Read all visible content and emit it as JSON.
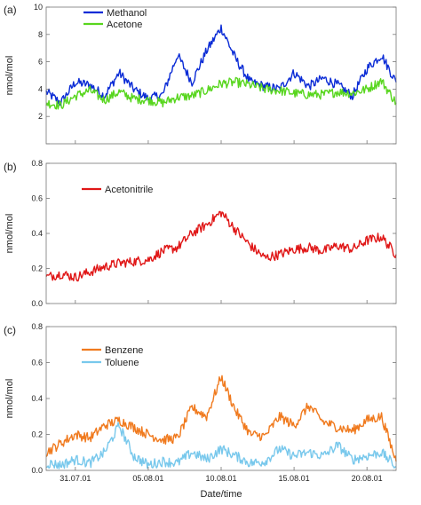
{
  "chart_data": [
    {
      "type": "line",
      "panel_label": "(a)",
      "ylabel": "nmol/mol",
      "ylim": [
        0,
        10
      ],
      "yticks": [
        0,
        2,
        4,
        6,
        8,
        10
      ],
      "ytick_labels": [
        "",
        "2",
        "4",
        "6",
        "8",
        "10"
      ],
      "x_range": [
        "2001-07-29",
        "2001-08-22"
      ],
      "legend_position": "top-left",
      "series": [
        {
          "name": "Methanol",
          "color": "#0a2bd6",
          "x": [
            "2001-07-29",
            "2001-07-30",
            "2001-07-31",
            "2001-08-01",
            "2001-08-02",
            "2001-08-03",
            "2001-08-04",
            "2001-08-05",
            "2001-08-06",
            "2001-08-07",
            "2001-08-08",
            "2001-08-09",
            "2001-08-10",
            "2001-08-11",
            "2001-08-12",
            "2001-08-13",
            "2001-08-14",
            "2001-08-15",
            "2001-08-16",
            "2001-08-17",
            "2001-08-18",
            "2001-08-19",
            "2001-08-20",
            "2001-08-21",
            "2001-08-22"
          ],
          "y": [
            3.8,
            3.0,
            4.5,
            4.3,
            3.5,
            5.2,
            4.0,
            3.3,
            3.6,
            6.5,
            4.5,
            6.8,
            8.5,
            6.2,
            4.5,
            4.2,
            4.0,
            5.2,
            4.2,
            4.8,
            4.3,
            3.5,
            5.5,
            6.5,
            4.5
          ]
        },
        {
          "name": "Acetone",
          "color": "#58d61e",
          "x": [
            "2001-07-29",
            "2001-07-30",
            "2001-07-31",
            "2001-08-01",
            "2001-08-02",
            "2001-08-03",
            "2001-08-04",
            "2001-08-05",
            "2001-08-06",
            "2001-08-07",
            "2001-08-08",
            "2001-08-09",
            "2001-08-10",
            "2001-08-11",
            "2001-08-12",
            "2001-08-13",
            "2001-08-14",
            "2001-08-15",
            "2001-08-16",
            "2001-08-17",
            "2001-08-18",
            "2001-08-19",
            "2001-08-20",
            "2001-08-21",
            "2001-08-22"
          ],
          "y": [
            3.0,
            2.8,
            3.5,
            3.9,
            3.2,
            3.8,
            3.3,
            3.2,
            3.0,
            3.4,
            3.5,
            3.9,
            4.4,
            4.5,
            4.3,
            4.0,
            3.9,
            3.7,
            3.6,
            3.6,
            3.8,
            3.7,
            4.0,
            4.6,
            3.0
          ]
        }
      ]
    },
    {
      "type": "line",
      "panel_label": "(b)",
      "ylabel": "nmol/mol",
      "ylim": [
        0,
        0.8
      ],
      "yticks": [
        0,
        0.2,
        0.4,
        0.6,
        0.8
      ],
      "ytick_labels": [
        "0.0",
        "0.2",
        "0.4",
        "0.6",
        "0.8"
      ],
      "x_range": [
        "2001-07-29",
        "2001-08-22"
      ],
      "legend_position": "top-left",
      "series": [
        {
          "name": "Acetonitrile",
          "color": "#e01616",
          "x": [
            "2001-07-29",
            "2001-07-30",
            "2001-07-31",
            "2001-08-01",
            "2001-08-02",
            "2001-08-03",
            "2001-08-04",
            "2001-08-05",
            "2001-08-06",
            "2001-08-07",
            "2001-08-08",
            "2001-08-09",
            "2001-08-10",
            "2001-08-11",
            "2001-08-12",
            "2001-08-13",
            "2001-08-14",
            "2001-08-15",
            "2001-08-16",
            "2001-08-17",
            "2001-08-18",
            "2001-08-19",
            "2001-08-20",
            "2001-08-21",
            "2001-08-22"
          ],
          "y": [
            0.15,
            0.17,
            0.15,
            0.18,
            0.21,
            0.23,
            0.24,
            0.25,
            0.3,
            0.32,
            0.4,
            0.45,
            0.52,
            0.42,
            0.33,
            0.26,
            0.28,
            0.31,
            0.32,
            0.3,
            0.33,
            0.31,
            0.36,
            0.38,
            0.28
          ]
        }
      ]
    },
    {
      "type": "line",
      "panel_label": "(c)",
      "ylabel": "nmol/mol",
      "xlabel": "Date/time",
      "ylim": [
        0,
        0.8
      ],
      "yticks": [
        0,
        0.2,
        0.4,
        0.6,
        0.8
      ],
      "ytick_labels": [
        "0.0",
        "0.2",
        "0.4",
        "0.6",
        "0.8"
      ],
      "x_range": [
        "2001-07-29",
        "2001-08-22"
      ],
      "xticks": [
        "2001-07-31",
        "2001-08-05",
        "2001-08-10",
        "2001-08-15",
        "2001-08-20"
      ],
      "xtick_labels": [
        "31.07.01",
        "05.08.01",
        "10.08.01",
        "15.08.01",
        "20.08.01"
      ],
      "legend_position": "top-left",
      "series": [
        {
          "name": "Benzene",
          "color": "#f07a1e",
          "x": [
            "2001-07-29",
            "2001-07-30",
            "2001-07-31",
            "2001-08-01",
            "2001-08-02",
            "2001-08-03",
            "2001-08-04",
            "2001-08-05",
            "2001-08-06",
            "2001-08-07",
            "2001-08-08",
            "2001-08-09",
            "2001-08-10",
            "2001-08-11",
            "2001-08-12",
            "2001-08-13",
            "2001-08-14",
            "2001-08-15",
            "2001-08-16",
            "2001-08-17",
            "2001-08-18",
            "2001-08-19",
            "2001-08-20",
            "2001-08-21",
            "2001-08-22"
          ],
          "y": [
            0.1,
            0.15,
            0.2,
            0.18,
            0.25,
            0.28,
            0.24,
            0.2,
            0.17,
            0.18,
            0.35,
            0.3,
            0.52,
            0.33,
            0.2,
            0.19,
            0.3,
            0.25,
            0.36,
            0.27,
            0.24,
            0.22,
            0.28,
            0.3,
            0.05
          ]
        },
        {
          "name": "Toluene",
          "color": "#78c8ec",
          "x": [
            "2001-07-29",
            "2001-07-30",
            "2001-07-31",
            "2001-08-01",
            "2001-08-02",
            "2001-08-03",
            "2001-08-04",
            "2001-08-05",
            "2001-08-06",
            "2001-08-07",
            "2001-08-08",
            "2001-08-09",
            "2001-08-10",
            "2001-08-11",
            "2001-08-12",
            "2001-08-13",
            "2001-08-14",
            "2001-08-15",
            "2001-08-16",
            "2001-08-17",
            "2001-08-18",
            "2001-08-19",
            "2001-08-20",
            "2001-08-21",
            "2001-08-22"
          ],
          "y": [
            0.04,
            0.03,
            0.06,
            0.04,
            0.1,
            0.25,
            0.08,
            0.03,
            0.05,
            0.04,
            0.1,
            0.06,
            0.12,
            0.08,
            0.04,
            0.05,
            0.12,
            0.08,
            0.1,
            0.08,
            0.14,
            0.06,
            0.08,
            0.1,
            0.02
          ]
        }
      ]
    }
  ]
}
